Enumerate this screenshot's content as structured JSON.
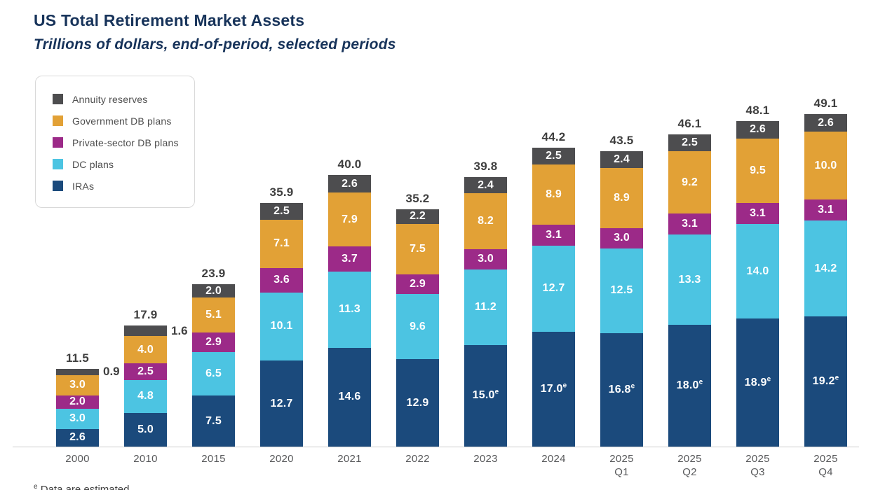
{
  "header": {
    "title": "US Total Retirement Market Assets",
    "subtitle": "Trillions of dollars, end-of-period, selected periods"
  },
  "footnote": {
    "sup": "e",
    "text": " Data are estimated"
  },
  "legend": {
    "items": [
      {
        "label": "Annuity reserves",
        "color": "#4d4d4f"
      },
      {
        "label": "Government DB plans",
        "color": "#e2a136"
      },
      {
        "label": "Private-sector DB plans",
        "color": "#9c2a88"
      },
      {
        "label": "DC plans",
        "color": "#4cc4e2"
      },
      {
        "label": "IRAs",
        "color": "#1b4a7c"
      }
    ]
  },
  "chart_data": {
    "type": "bar",
    "stacked": true,
    "title": "US Total Retirement Market Assets",
    "subtitle": "Trillions of dollars, end-of-period, selected periods",
    "unit": "trillions of US dollars",
    "legend_position": "top-left",
    "grid": false,
    "categories": [
      [
        "2000"
      ],
      [
        "2010"
      ],
      [
        "2015"
      ],
      [
        "2020"
      ],
      [
        "2021"
      ],
      [
        "2022"
      ],
      [
        "2023"
      ],
      [
        "2024"
      ],
      [
        "2025",
        "Q1"
      ],
      [
        "2025",
        "Q2"
      ],
      [
        "2025",
        "Q3"
      ],
      [
        "2025",
        "Q4"
      ]
    ],
    "totals": [
      11.5,
      17.9,
      23.9,
      35.9,
      40.0,
      35.2,
      39.8,
      44.2,
      43.5,
      46.1,
      48.1,
      49.1
    ],
    "series": [
      {
        "name": "IRAs",
        "color": "#1b4a7c",
        "values": [
          2.6,
          5.0,
          7.5,
          12.7,
          14.6,
          12.9,
          15.0,
          17.0,
          16.8,
          18.0,
          18.9,
          19.2
        ],
        "estimated": [
          false,
          false,
          false,
          false,
          false,
          false,
          true,
          true,
          true,
          true,
          true,
          true
        ]
      },
      {
        "name": "DC plans",
        "color": "#4cc4e2",
        "values": [
          3.0,
          4.8,
          6.5,
          10.1,
          11.3,
          9.6,
          11.2,
          12.7,
          12.5,
          13.3,
          14.0,
          14.2
        ]
      },
      {
        "name": "Private-sector DB plans",
        "color": "#9c2a88",
        "values": [
          2.0,
          2.5,
          2.9,
          3.6,
          3.7,
          2.9,
          3.0,
          3.1,
          3.0,
          3.1,
          3.1,
          3.1
        ]
      },
      {
        "name": "Government DB plans",
        "color": "#e2a136",
        "values": [
          3.0,
          4.0,
          5.1,
          7.1,
          7.9,
          7.5,
          8.2,
          8.9,
          8.9,
          9.2,
          9.5,
          10.0
        ]
      },
      {
        "name": "Annuity reserves",
        "color": "#4d4d4f",
        "values": [
          0.9,
          1.6,
          2.0,
          2.5,
          2.6,
          2.2,
          2.4,
          2.5,
          2.4,
          2.5,
          2.6,
          2.6
        ],
        "label_outside": [
          true,
          true,
          false,
          false,
          false,
          false,
          false,
          false,
          false,
          false,
          false,
          false
        ]
      }
    ]
  }
}
